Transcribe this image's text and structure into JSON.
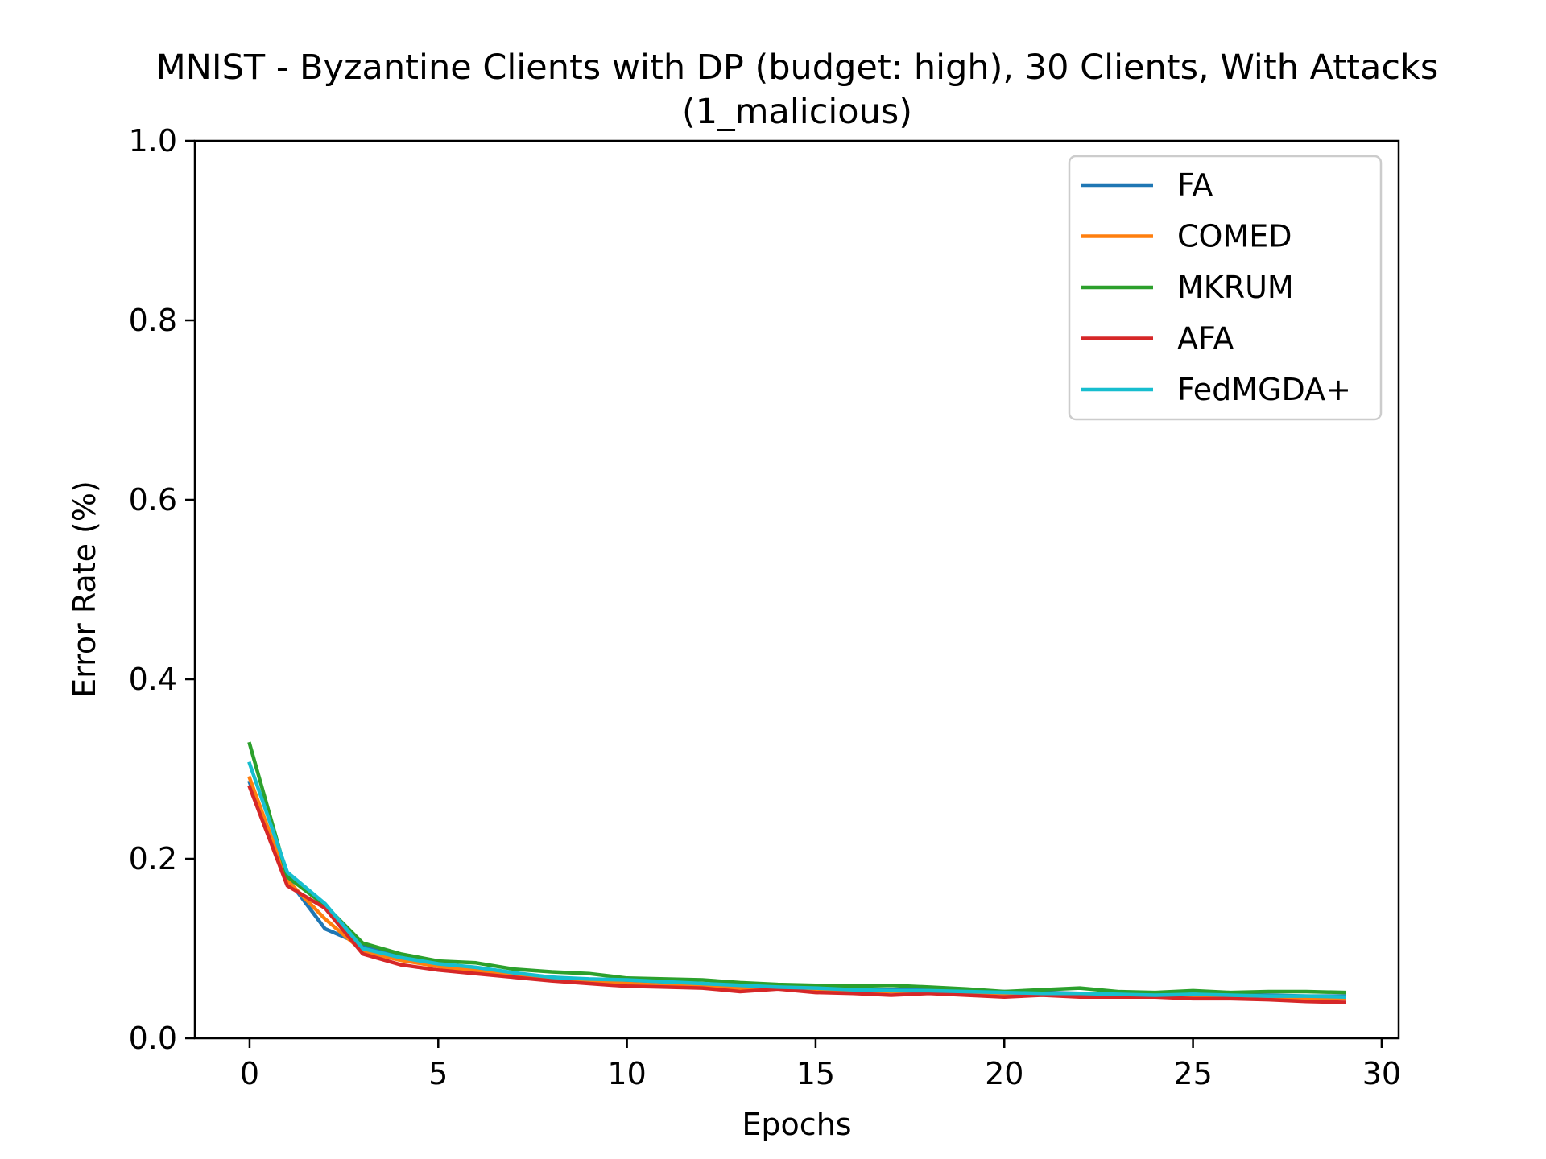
{
  "chart_data": {
    "type": "line",
    "title": "MNIST - Byzantine Clients with DP (budget: high), 30 Clients, With Attacks",
    "subtitle": "(1_malicious)",
    "xlabel": "Epochs",
    "ylabel": "Error Rate (%)",
    "xlim": [
      -1.45,
      30.45
    ],
    "ylim": [
      0.0,
      1.0
    ],
    "xticks": [
      0,
      5,
      10,
      15,
      20,
      25,
      30
    ],
    "xtick_labels": [
      "0",
      "5",
      "10",
      "15",
      "20",
      "25",
      "30"
    ],
    "yticks": [
      0.0,
      0.2,
      0.4,
      0.6,
      0.8,
      1.0
    ],
    "ytick_labels": [
      "0.0",
      "0.2",
      "0.4",
      "0.6",
      "0.8",
      "1.0"
    ],
    "grid": false,
    "legend_position": "top-right",
    "x": [
      0,
      1,
      2,
      3,
      4,
      5,
      6,
      7,
      8,
      9,
      10,
      11,
      12,
      13,
      14,
      15,
      16,
      17,
      18,
      19,
      20,
      21,
      22,
      23,
      24,
      25,
      26,
      27,
      28,
      29
    ],
    "series": [
      {
        "name": "FA",
        "color": "#1f77b4",
        "values": [
          0.285,
          0.178,
          0.122,
          0.104,
          0.09,
          0.082,
          0.077,
          0.072,
          0.068,
          0.065,
          0.063,
          0.061,
          0.06,
          0.058,
          0.057,
          0.056,
          0.055,
          0.054,
          0.054,
          0.053,
          0.052,
          0.051,
          0.05,
          0.05,
          0.049,
          0.049,
          0.048,
          0.048,
          0.047,
          0.047
        ]
      },
      {
        "name": "COMED",
        "color": "#ff7f0e",
        "values": [
          0.29,
          0.176,
          0.133,
          0.097,
          0.087,
          0.08,
          0.075,
          0.07,
          0.066,
          0.063,
          0.061,
          0.059,
          0.058,
          0.056,
          0.055,
          0.054,
          0.053,
          0.052,
          0.052,
          0.051,
          0.05,
          0.049,
          0.049,
          0.048,
          0.047,
          0.047,
          0.046,
          0.046,
          0.045,
          0.044
        ]
      },
      {
        "name": "MKRUM",
        "color": "#2ca02c",
        "values": [
          0.328,
          0.18,
          0.148,
          0.106,
          0.094,
          0.086,
          0.084,
          0.077,
          0.074,
          0.072,
          0.067,
          0.066,
          0.065,
          0.062,
          0.06,
          0.059,
          0.058,
          0.059,
          0.057,
          0.055,
          0.052,
          0.054,
          0.056,
          0.052,
          0.051,
          0.053,
          0.051,
          0.052,
          0.052,
          0.051
        ]
      },
      {
        "name": "AFA",
        "color": "#d62728",
        "values": [
          0.28,
          0.17,
          0.145,
          0.094,
          0.082,
          0.076,
          0.072,
          0.068,
          0.064,
          0.061,
          0.058,
          0.057,
          0.056,
          0.052,
          0.055,
          0.051,
          0.05,
          0.048,
          0.05,
          0.048,
          0.046,
          0.048,
          0.046,
          0.046,
          0.046,
          0.044,
          0.044,
          0.043,
          0.041,
          0.04
        ]
      },
      {
        "name": "FedMGDA+",
        "color": "#17becf",
        "values": [
          0.306,
          0.185,
          0.15,
          0.1,
          0.09,
          0.083,
          0.079,
          0.073,
          0.068,
          0.066,
          0.065,
          0.063,
          0.061,
          0.059,
          0.057,
          0.056,
          0.054,
          0.053,
          0.053,
          0.052,
          0.051,
          0.05,
          0.05,
          0.049,
          0.048,
          0.049,
          0.048,
          0.047,
          0.047,
          0.046
        ]
      }
    ]
  }
}
